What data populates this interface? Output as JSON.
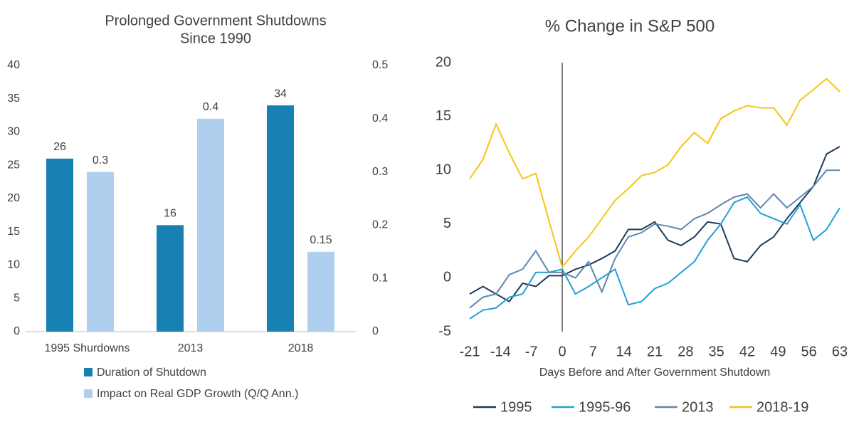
{
  "chart_data": [
    {
      "type": "bar",
      "title": [
        "Prolonged Government Shutdowns",
        "Since 1990"
      ],
      "categories": [
        "1995 Shurdowns",
        "2013",
        "2018"
      ],
      "series": [
        {
          "name": "Duration of Shutdown",
          "color": "#1880b2",
          "values": [
            26,
            16,
            34
          ]
        },
        {
          "name": "Impact on Real GDP Growth (Q/Q Ann.)",
          "color": "#aed0ee",
          "values": [
            0.3,
            0.4,
            0.15
          ],
          "axis": "y2"
        }
      ],
      "ylim": [
        0,
        40
      ],
      "yticks": [
        0,
        5,
        10,
        15,
        20,
        25,
        30,
        35,
        40
      ],
      "y2lim": [
        0,
        0.5
      ],
      "y2ticks": [
        0,
        0.1,
        0.2,
        0.3,
        0.4,
        0.5
      ],
      "legend": "bottom"
    },
    {
      "type": "line",
      "title": "% Change in S&P 500",
      "xlabel": "Days Before and After Government Shutdown",
      "x": [
        -21,
        -18,
        -15,
        -12,
        -9,
        -6,
        -3,
        0,
        3,
        6,
        9,
        12,
        15,
        18,
        21,
        24,
        27,
        30,
        33,
        36,
        39,
        42,
        45,
        48,
        51,
        54,
        57,
        60,
        63
      ],
      "series": [
        {
          "name": "1995",
          "color": "#1b3a5c",
          "values": [
            -1.5,
            -0.8,
            -1.5,
            -2.2,
            -0.5,
            -0.8,
            0.2,
            0.2,
            0.8,
            1.2,
            1.8,
            2.5,
            4.5,
            4.5,
            5.2,
            3.5,
            3.0,
            3.8,
            5.2,
            5.0,
            1.8,
            1.5,
            3.0,
            3.8,
            5.5,
            7.0,
            8.5,
            11.5,
            12.2
          ]
        },
        {
          "name": "1995-96",
          "color": "#22a0d6",
          "values": [
            -3.8,
            -3.0,
            -2.8,
            -1.8,
            -1.5,
            0.5,
            0.5,
            0.8,
            -1.5,
            -0.8,
            0.0,
            0.8,
            -2.5,
            -2.2,
            -1.0,
            -0.5,
            0.5,
            1.5,
            3.5,
            5.0,
            7.0,
            7.5,
            6.0,
            5.5,
            5.0,
            6.8,
            3.5,
            4.5,
            6.5
          ]
        },
        {
          "name": "2013",
          "color": "#5f87ad",
          "values": [
            -2.8,
            -1.8,
            -1.5,
            0.3,
            0.8,
            2.5,
            0.5,
            0.5,
            0.0,
            1.5,
            -1.3,
            1.8,
            3.8,
            4.2,
            5.0,
            4.8,
            4.5,
            5.5,
            6.0,
            6.8,
            7.5,
            7.8,
            6.5,
            7.8,
            6.5,
            7.5,
            8.5,
            10.0,
            10.0
          ]
        },
        {
          "name": "2018-19",
          "color": "#f5c518",
          "values": [
            9.2,
            11.0,
            14.3,
            11.6,
            9.2,
            9.7,
            5.3,
            1.0,
            2.5,
            3.8,
            5.5,
            7.2,
            8.3,
            9.5,
            9.8,
            10.5,
            12.2,
            13.5,
            12.5,
            14.8,
            15.5,
            16.0,
            15.8,
            15.8,
            14.2,
            16.5,
            17.5,
            18.5,
            17.3
          ]
        }
      ],
      "xlim": [
        -21,
        63
      ],
      "xticks": [
        -21,
        -14,
        -7,
        0,
        7,
        14,
        21,
        28,
        35,
        42,
        49,
        56,
        63
      ],
      "ylim": [
        -5,
        20
      ],
      "yticks": [
        -5,
        0,
        5,
        10,
        15,
        20
      ],
      "legend": "bottom"
    }
  ]
}
